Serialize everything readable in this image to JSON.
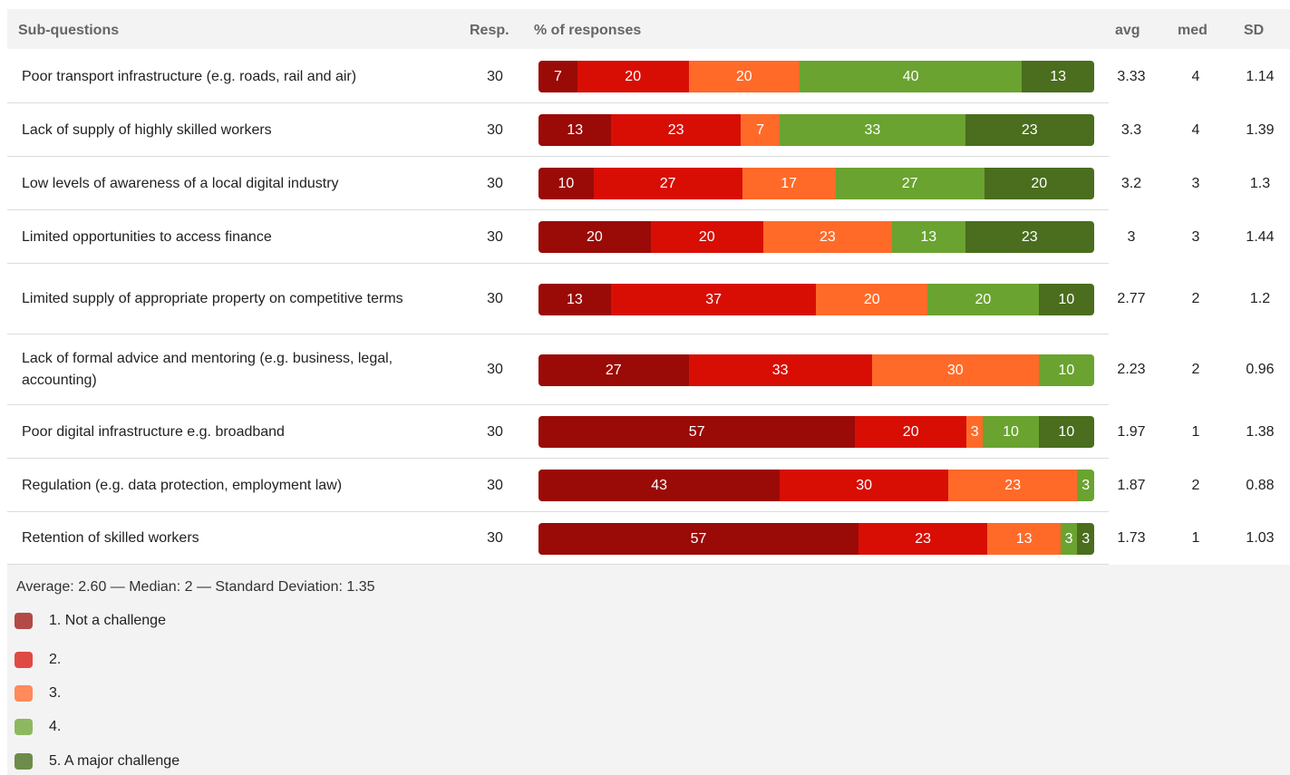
{
  "header": {
    "sub_questions": "Sub-questions",
    "resp": "Resp.",
    "pct": "% of responses",
    "avg": "avg",
    "med": "med",
    "sd": "SD"
  },
  "colors": [
    "#9a0a07",
    "#d80e05",
    "#ff6a29",
    "#6aa330",
    "#4a6d1e"
  ],
  "legend_colors": [
    "#b34a47",
    "#e04a44",
    "#ff8a5a",
    "#8eb860",
    "#6d8c4a"
  ],
  "chart_data": {
    "type": "bar",
    "stacked": true,
    "orientation": "horizontal",
    "xlim": [
      0,
      100
    ],
    "categories": [
      "Poor transport infrastructure (e.g. roads, rail and air)",
      "Lack of supply of highly skilled workers",
      "Low levels of awareness of a local digital industry",
      "Limited opportunities to access finance",
      "Limited supply of appropriate property on competitive terms",
      "Lack of formal advice and mentoring (e.g. business, legal, accounting)",
      "Poor digital infrastructure e.g. broadband",
      "Regulation (e.g. data protection, employment law)",
      "Retention of skilled workers"
    ],
    "series": [
      {
        "name": "1. Not a challenge",
        "values": [
          7,
          13,
          10,
          20,
          13,
          27,
          57,
          43,
          57
        ]
      },
      {
        "name": "2.",
        "values": [
          20,
          23,
          27,
          20,
          37,
          33,
          20,
          30,
          23
        ]
      },
      {
        "name": "3.",
        "values": [
          20,
          7,
          17,
          23,
          20,
          30,
          3,
          23,
          13
        ]
      },
      {
        "name": "4.",
        "values": [
          40,
          33,
          27,
          13,
          20,
          10,
          10,
          3,
          3
        ]
      },
      {
        "name": "5. A major challenge",
        "values": [
          13,
          23,
          20,
          23,
          10,
          0,
          10,
          0,
          3
        ]
      }
    ],
    "resp": [
      30,
      30,
      30,
      30,
      30,
      30,
      30,
      30,
      30
    ],
    "avg": [
      "3.33",
      "3.3",
      "3.2",
      "3",
      "2.77",
      "2.23",
      "1.97",
      "1.87",
      "1.73"
    ],
    "med": [
      "4",
      "4",
      "3",
      "3",
      "2",
      "2",
      "1",
      "2",
      "1"
    ],
    "sd": [
      "1.14",
      "1.39",
      "1.3",
      "1.44",
      "1.2",
      "0.96",
      "1.38",
      "0.88",
      "1.03"
    ]
  },
  "summary": "Average: 2.60 — Median: 2 — Standard Deviation: 1.35",
  "legend": [
    "1. Not a challenge",
    "2.",
    "3.",
    "4.",
    "5. A major challenge"
  ]
}
